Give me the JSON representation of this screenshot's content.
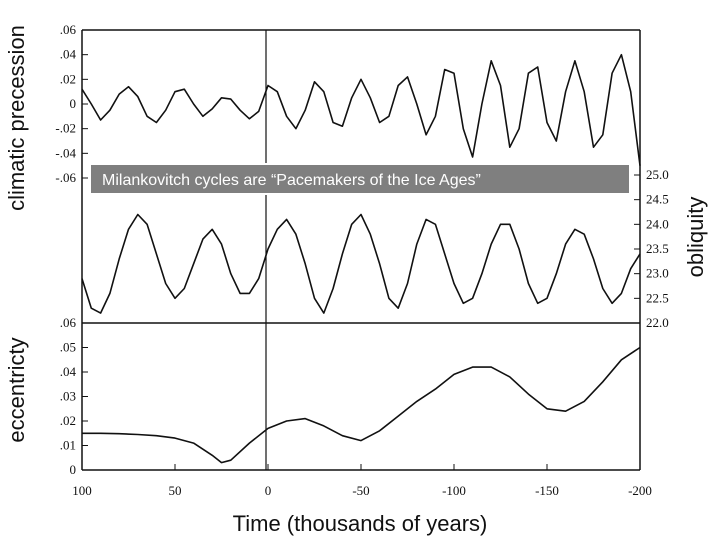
{
  "banner": {
    "text": "Milankovitch cycles are “Pacemakers of the Ice Ages”"
  },
  "chart_data": [
    {
      "type": "line",
      "name_key": "precession",
      "ylabel": "climatic precession",
      "ylim": [
        -0.06,
        0.06
      ],
      "y_ticks": [
        ".06",
        ".04",
        ".02",
        "0",
        "-.02",
        "-.04",
        "-.06"
      ],
      "y_tick_values": [
        0.06,
        0.04,
        0.02,
        0,
        -0.02,
        -0.04,
        -0.06
      ],
      "x": [
        100,
        95,
        90,
        85,
        80,
        75,
        70,
        65,
        60,
        55,
        50,
        45,
        40,
        35,
        30,
        25,
        20,
        15,
        10,
        5,
        0,
        -5,
        -10,
        -15,
        -20,
        -25,
        -30,
        -35,
        -40,
        -45,
        -50,
        -55,
        -60,
        -65,
        -70,
        -75,
        -80,
        -85,
        -90,
        -95,
        -100,
        -105,
        -110,
        -115,
        -120,
        -125,
        -130,
        -135,
        -140,
        -145,
        -150,
        -155,
        -160,
        -165,
        -170,
        -175,
        -180,
        -185,
        -190,
        -195,
        -200
      ],
      "values": [
        0.012,
        0.0,
        -0.013,
        -0.005,
        0.008,
        0.014,
        0.006,
        -0.01,
        -0.015,
        -0.005,
        0.01,
        0.012,
        0.0,
        -0.01,
        -0.004,
        0.005,
        0.004,
        -0.005,
        -0.012,
        -0.006,
        0.015,
        0.01,
        -0.01,
        -0.02,
        -0.005,
        0.018,
        0.01,
        -0.015,
        -0.018,
        0.005,
        0.02,
        0.005,
        -0.015,
        -0.01,
        0.015,
        0.022,
        0.0,
        -0.025,
        -0.01,
        0.028,
        0.025,
        -0.02,
        -0.043,
        0.0,
        0.035,
        0.015,
        -0.035,
        -0.02,
        0.025,
        0.03,
        -0.015,
        -0.03,
        0.01,
        0.035,
        0.01,
        -0.035,
        -0.025,
        0.025,
        0.04,
        0.01,
        -0.05
      ]
    },
    {
      "type": "line",
      "name_key": "obliquity",
      "ylabel": "obliquity",
      "ylim": [
        22.0,
        25.0
      ],
      "y_ticks": [
        "25.0",
        "24.5",
        "24.0",
        "23.5",
        "23.0",
        "22.5",
        "22.0"
      ],
      "y_tick_values": [
        25.0,
        24.5,
        24.0,
        23.5,
        23.0,
        22.5,
        22.0
      ],
      "x": [
        100,
        95,
        90,
        85,
        80,
        75,
        70,
        65,
        60,
        55,
        50,
        45,
        40,
        35,
        30,
        25,
        20,
        15,
        10,
        5,
        0,
        -5,
        -10,
        -15,
        -20,
        -25,
        -30,
        -35,
        -40,
        -45,
        -50,
        -55,
        -60,
        -65,
        -70,
        -75,
        -80,
        -85,
        -90,
        -95,
        -100,
        -105,
        -110,
        -115,
        -120,
        -125,
        -130,
        -135,
        -140,
        -145,
        -150,
        -155,
        -160,
        -165,
        -170,
        -175,
        -180,
        -185,
        -190,
        -195,
        -200
      ],
      "values": [
        22.9,
        22.3,
        22.2,
        22.6,
        23.3,
        23.9,
        24.2,
        24.0,
        23.4,
        22.8,
        22.5,
        22.7,
        23.2,
        23.7,
        23.9,
        23.6,
        23.0,
        22.6,
        22.6,
        22.9,
        23.5,
        23.9,
        24.1,
        23.8,
        23.2,
        22.5,
        22.2,
        22.7,
        23.4,
        24.0,
        24.2,
        23.8,
        23.2,
        22.5,
        22.3,
        22.8,
        23.6,
        24.1,
        24.0,
        23.4,
        22.8,
        22.4,
        22.5,
        23.0,
        23.6,
        24.0,
        24.0,
        23.5,
        22.8,
        22.4,
        22.5,
        23.0,
        23.6,
        23.9,
        23.8,
        23.3,
        22.7,
        22.4,
        22.6,
        23.1,
        23.4
      ]
    },
    {
      "type": "line",
      "name_key": "eccentricity",
      "ylabel": "eccentricty",
      "xlabel": "Time (thousands of years)",
      "ylim": [
        0,
        0.06
      ],
      "xlim": [
        100,
        -200
      ],
      "y_ticks": [
        ".06",
        ".05",
        ".04",
        ".03",
        ".02",
        ".01",
        "0"
      ],
      "y_tick_values": [
        0.06,
        0.05,
        0.04,
        0.03,
        0.02,
        0.01,
        0
      ],
      "x_ticks": [
        "100",
        "50",
        "0",
        "-50",
        "-100",
        "-150",
        "-200"
      ],
      "x_tick_values": [
        100,
        50,
        0,
        -50,
        -100,
        -150,
        -200
      ],
      "x": [
        100,
        90,
        80,
        70,
        60,
        50,
        40,
        30,
        25,
        20,
        10,
        0,
        -10,
        -20,
        -30,
        -40,
        -50,
        -60,
        -70,
        -80,
        -90,
        -100,
        -110,
        -120,
        -130,
        -140,
        -150,
        -160,
        -170,
        -180,
        -190,
        -200
      ],
      "values": [
        0.015,
        0.015,
        0.0148,
        0.0145,
        0.014,
        0.013,
        0.011,
        0.006,
        0.003,
        0.004,
        0.011,
        0.017,
        0.02,
        0.021,
        0.018,
        0.014,
        0.012,
        0.016,
        0.022,
        0.028,
        0.033,
        0.039,
        0.042,
        0.042,
        0.038,
        0.031,
        0.025,
        0.024,
        0.028,
        0.036,
        0.045,
        0.05
      ]
    }
  ]
}
